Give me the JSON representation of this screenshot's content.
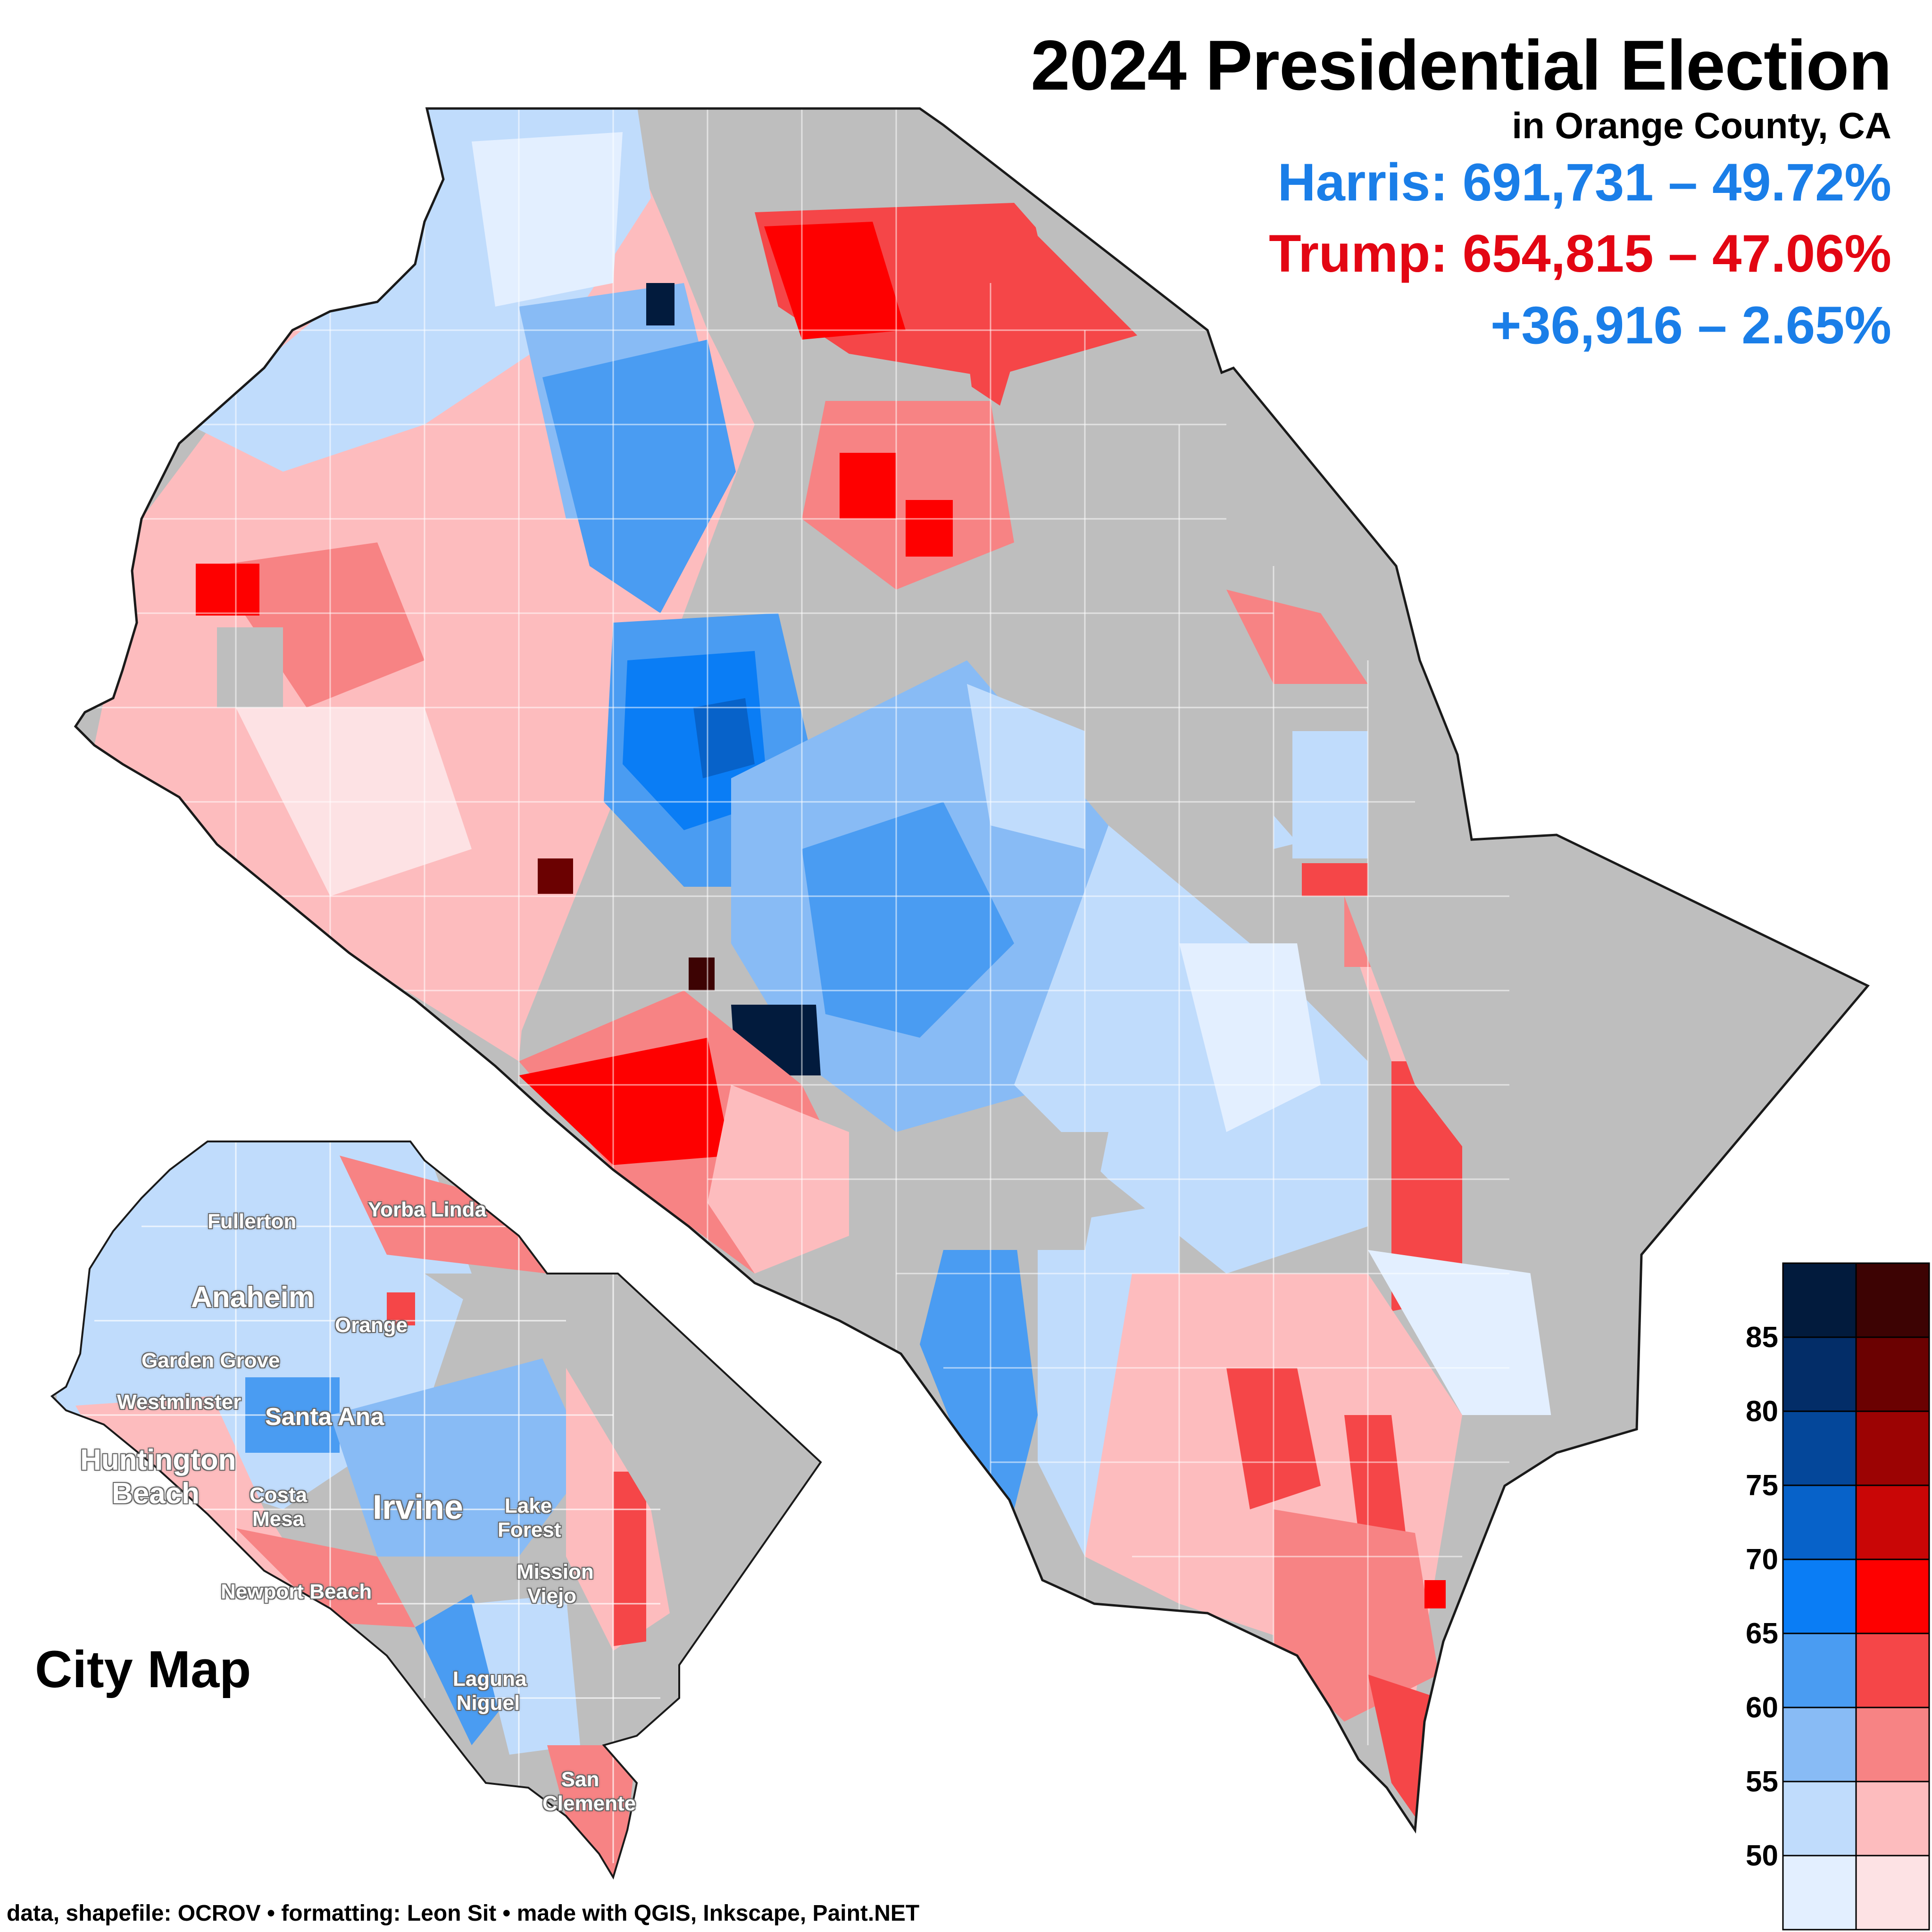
{
  "title": "2024 Presidential Election",
  "subtitle": "in Orange County, CA",
  "results": {
    "harris": "Harris: 691,731 – 49.72%",
    "trump": "Trump: 654,815 – 47.06%",
    "margin": "+36,916 – 2.65%"
  },
  "inset": {
    "label": "City Map",
    "cities": [
      "Fullerton",
      "Yorba Linda",
      "Anaheim",
      "Orange",
      "Garden Grove",
      "Westminster",
      "Santa Ana",
      "Huntington Beach",
      "Costa Mesa",
      "Irvine",
      "Lake Forest",
      "Mission Viejo",
      "Newport Beach",
      "Laguna Niguel",
      "San Clemente"
    ]
  },
  "legend": {
    "ticks": [
      "85",
      "80",
      "75",
      "70",
      "65",
      "60",
      "55",
      "50"
    ],
    "blue_scale": [
      "#e3efff",
      "#c0dcfc",
      "#88bbf5",
      "#4a9cf2",
      "#0a7df5",
      "#0762c9",
      "#04479a",
      "#032d68",
      "#021b3d"
    ],
    "red_scale": [
      "#fde2e4",
      "#fdbcbe",
      "#f78384",
      "#f54648",
      "#fe0000",
      "#c90606",
      "#9c0303",
      "#6b0101",
      "#3d0303"
    ]
  },
  "colors": {
    "no_data": "#bebebe",
    "outline": "#1a1a1a",
    "harris": "#1a7ee8",
    "trump": "#e30613"
  },
  "footer": "data, shapefile: OCROV • formatting: Leon Sit • made with QGIS, Inkscape, Paint.NET"
}
